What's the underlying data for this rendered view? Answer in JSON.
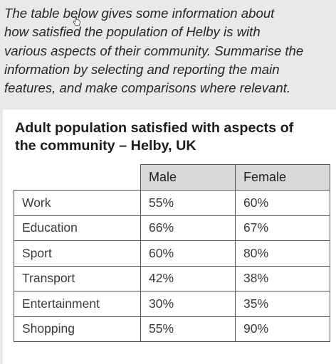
{
  "prompt": {
    "lines": [
      "The table below gives some information about",
      "how satisfied the population of Helby is with",
      "various aspects of their community. Summarise the",
      "information by selecting and reporting the main",
      "features, and make comparisons where relevant."
    ]
  },
  "table": {
    "title_lines": [
      "Adult population satisfied with aspects of",
      "the community – Helby, UK"
    ],
    "headers": {
      "male": "Male",
      "female": "Female"
    },
    "rows": [
      {
        "label": "Work",
        "male": "55%",
        "female": "60%"
      },
      {
        "label": "Education",
        "male": "66%",
        "female": "67%"
      },
      {
        "label": "Sport",
        "male": "60%",
        "female": "80%"
      },
      {
        "label": "Transport",
        "male": "42%",
        "female": "38%"
      },
      {
        "label": "Entertainment",
        "male": "30%",
        "female": "35%"
      },
      {
        "label": "Shopping",
        "male": "55%",
        "female": "90%"
      }
    ]
  },
  "cursor": {
    "icon": "hand-pointer-icon"
  }
}
